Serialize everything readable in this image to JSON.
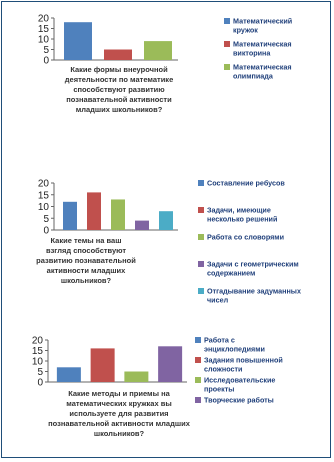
{
  "chart_data": [
    {
      "type": "bar",
      "title": "Какие формы внеурочной деятельности по математике способствуют развитию познавательной активности младших школьников?",
      "ylim": [
        0,
        20
      ],
      "yticks": [
        0,
        5,
        10,
        15,
        20
      ],
      "grid": false,
      "legend_position": "right",
      "series": [
        {
          "name": "Математический кружок",
          "values": [
            18
          ],
          "color": "#4f81bd"
        },
        {
          "name": "Математическая викторина",
          "values": [
            5
          ],
          "color": "#c0504d"
        },
        {
          "name": "Математическая олимпиада",
          "values": [
            9
          ],
          "color": "#9bbb59"
        }
      ]
    },
    {
      "type": "bar",
      "title": "Какие темы на ваш взгляд способствуют развитию познавательной активности младших школьников?",
      "ylim": [
        0,
        20
      ],
      "yticks": [
        0,
        5,
        10,
        15,
        20
      ],
      "grid": false,
      "legend_position": "right",
      "series": [
        {
          "name": "Составление ребусов",
          "values": [
            12
          ],
          "color": "#4f81bd"
        },
        {
          "name": "Задачи, имеющие несколько решений",
          "values": [
            16
          ],
          "color": "#c0504d"
        },
        {
          "name": "Работа со словорями",
          "values": [
            13
          ],
          "color": "#9bbb59"
        },
        {
          "name": "Задачи с геометрическим содержанием",
          "values": [
            4
          ],
          "color": "#8064a2"
        },
        {
          "name": "Отгадывание задуманных чисел",
          "values": [
            8
          ],
          "color": "#4bacc6"
        }
      ]
    },
    {
      "type": "bar",
      "title": "Какие методы и приемы на математических кружках вы используете для развития познавательной активности младших школьников?",
      "ylim": [
        0,
        20
      ],
      "yticks": [
        0,
        5,
        10,
        15,
        20
      ],
      "grid": false,
      "legend_position": "right",
      "series": [
        {
          "name": "Работа с энциклопедиями",
          "values": [
            7
          ],
          "color": "#4f81bd"
        },
        {
          "name": "Задания повышенной сложности",
          "values": [
            16
          ],
          "color": "#c0504d"
        },
        {
          "name": "Исследовательские проекты",
          "values": [
            5
          ],
          "color": "#9bbb59"
        },
        {
          "name": "Творческие работы",
          "values": [
            17
          ],
          "color": "#8064a2"
        }
      ]
    }
  ]
}
